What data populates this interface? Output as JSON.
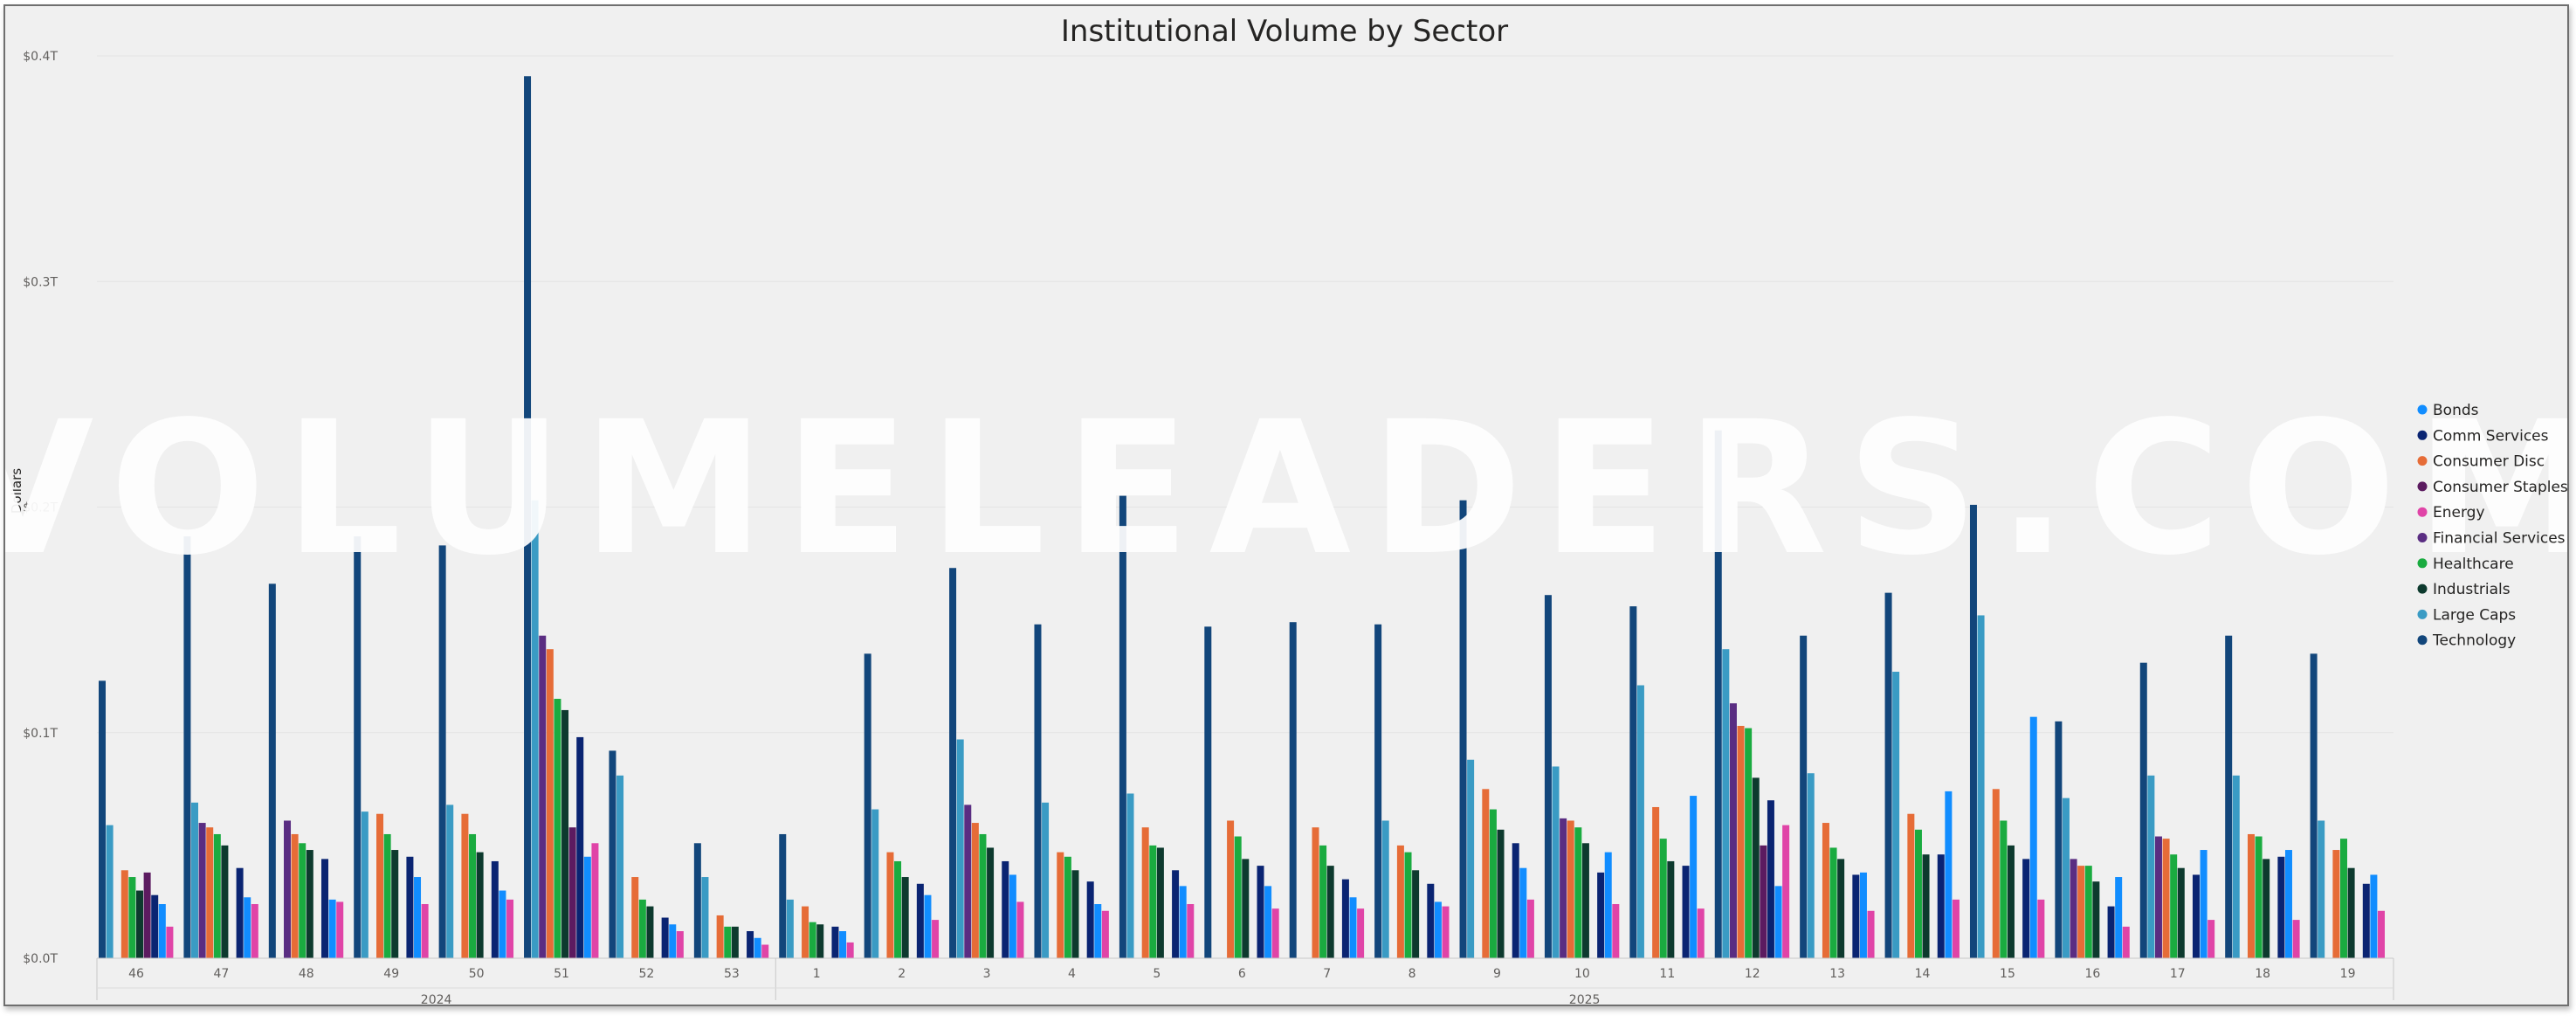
{
  "chart_data": {
    "type": "bar",
    "title": "Institutional Volume by Sector",
    "ylabel": "Dollars",
    "xlabel": "",
    "ylim": [
      0,
      0.4
    ],
    "yticks": [
      "$0.0T",
      "$0.1T",
      "$0.2T",
      "$0.3T",
      "$0.4T"
    ],
    "year_labels": [
      "2024",
      "2025"
    ],
    "watermark": "VolumeLeaders.com",
    "legend_position": "right",
    "grid": true,
    "categories": [
      "46",
      "47",
      "48",
      "49",
      "50",
      "51",
      "52",
      "53",
      "1",
      "2",
      "3",
      "4",
      "5",
      "6",
      "7",
      "8",
      "9",
      "10",
      "11",
      "12",
      "13",
      "14",
      "15",
      "16",
      "17",
      "18",
      "19"
    ],
    "series": [
      {
        "name": "Technology",
        "color": "#12467b",
        "values": [
          0.123,
          0.187,
          0.166,
          0.187,
          0.183,
          0.391,
          0.092,
          0.051,
          0.055,
          0.135,
          0.173,
          0.148,
          0.205,
          0.147,
          0.149,
          0.148,
          0.203,
          0.161,
          0.156,
          0.234,
          0.143,
          0.162,
          0.201,
          0.105,
          0.131,
          0.143,
          0.135
        ]
      },
      {
        "name": "Large Caps",
        "color": "#3a9bc4",
        "values": [
          0.059,
          0.069,
          0.0,
          0.065,
          0.068,
          0.203,
          0.081,
          0.036,
          0.026,
          0.066,
          0.097,
          0.069,
          0.073,
          0.0,
          0.0,
          0.061,
          0.088,
          0.085,
          0.121,
          0.137,
          0.082,
          0.127,
          0.152,
          0.071,
          0.081,
          0.081,
          0.061
        ]
      },
      {
        "name": "Financial Services",
        "color": "#5a2d82",
        "values": [
          0.0,
          0.06,
          0.061,
          0.0,
          0.0,
          0.143,
          0.0,
          0.0,
          0.0,
          0.0,
          0.068,
          0.0,
          0.0,
          0.0,
          0.0,
          0.0,
          0.0,
          0.062,
          0.0,
          0.113,
          0.0,
          0.0,
          0.0,
          0.044,
          0.054,
          0.0,
          0.0
        ]
      },
      {
        "name": "Consumer Disc",
        "color": "#e66c37",
        "values": [
          0.039,
          0.058,
          0.055,
          0.064,
          0.064,
          0.137,
          0.036,
          0.019,
          0.023,
          0.047,
          0.06,
          0.047,
          0.058,
          0.061,
          0.058,
          0.05,
          0.075,
          0.061,
          0.067,
          0.103,
          0.06,
          0.064,
          0.075,
          0.041,
          0.053,
          0.055,
          0.048
        ]
      },
      {
        "name": "Healthcare",
        "color": "#1aab40",
        "values": [
          0.036,
          0.055,
          0.051,
          0.055,
          0.055,
          0.115,
          0.026,
          0.014,
          0.016,
          0.043,
          0.055,
          0.045,
          0.05,
          0.054,
          0.05,
          0.047,
          0.066,
          0.058,
          0.053,
          0.102,
          0.049,
          0.057,
          0.061,
          0.041,
          0.046,
          0.054,
          0.053
        ]
      },
      {
        "name": "Industrials",
        "color": "#0d3a2e",
        "values": [
          0.03,
          0.05,
          0.048,
          0.048,
          0.047,
          0.11,
          0.023,
          0.014,
          0.015,
          0.036,
          0.049,
          0.039,
          0.049,
          0.044,
          0.041,
          0.039,
          0.057,
          0.051,
          0.043,
          0.08,
          0.044,
          0.046,
          0.05,
          0.034,
          0.04,
          0.044,
          0.04
        ]
      },
      {
        "name": "Consumer Staples",
        "color": "#5c1b60",
        "values": [
          0.038,
          0.0,
          0.0,
          0.0,
          0.0,
          0.058,
          0.0,
          0.0,
          0.0,
          0.0,
          0.0,
          0.0,
          0.0,
          0.0,
          0.0,
          0.0,
          0.0,
          0.0,
          0.0,
          0.05,
          0.0,
          0.0,
          0.0,
          0.0,
          0.0,
          0.0,
          0.0
        ]
      },
      {
        "name": "Comm Services",
        "color": "#0a2472",
        "values": [
          0.028,
          0.04,
          0.044,
          0.045,
          0.043,
          0.098,
          0.018,
          0.012,
          0.014,
          0.033,
          0.043,
          0.034,
          0.039,
          0.041,
          0.035,
          0.033,
          0.051,
          0.038,
          0.041,
          0.07,
          0.037,
          0.046,
          0.044,
          0.023,
          0.037,
          0.045,
          0.033
        ]
      },
      {
        "name": "Bonds",
        "color": "#118dff",
        "values": [
          0.024,
          0.027,
          0.026,
          0.036,
          0.03,
          0.045,
          0.015,
          0.009,
          0.012,
          0.028,
          0.037,
          0.024,
          0.032,
          0.032,
          0.027,
          0.025,
          0.04,
          0.047,
          0.072,
          0.032,
          0.038,
          0.074,
          0.107,
          0.036,
          0.048,
          0.048,
          0.037
        ]
      },
      {
        "name": "Energy",
        "color": "#e044a7",
        "values": [
          0.014,
          0.024,
          0.025,
          0.024,
          0.026,
          0.051,
          0.012,
          0.006,
          0.007,
          0.017,
          0.025,
          0.021,
          0.024,
          0.022,
          0.022,
          0.023,
          0.026,
          0.024,
          0.022,
          0.059,
          0.021,
          0.026,
          0.026,
          0.014,
          0.017,
          0.017,
          0.021
        ]
      }
    ],
    "legend": [
      {
        "name": "Bonds",
        "color": "#118dff"
      },
      {
        "name": "Comm Services",
        "color": "#0a2472"
      },
      {
        "name": "Consumer Disc",
        "color": "#e66c37"
      },
      {
        "name": "Consumer Staples",
        "color": "#5c1b60"
      },
      {
        "name": "Energy",
        "color": "#e044a7"
      },
      {
        "name": "Financial Services",
        "color": "#5a2d82"
      },
      {
        "name": "Healthcare",
        "color": "#1aab40"
      },
      {
        "name": "Industrials",
        "color": "#0d3a2e"
      },
      {
        "name": "Large Caps",
        "color": "#3a9bc4"
      },
      {
        "name": "Technology",
        "color": "#12467b"
      }
    ]
  }
}
